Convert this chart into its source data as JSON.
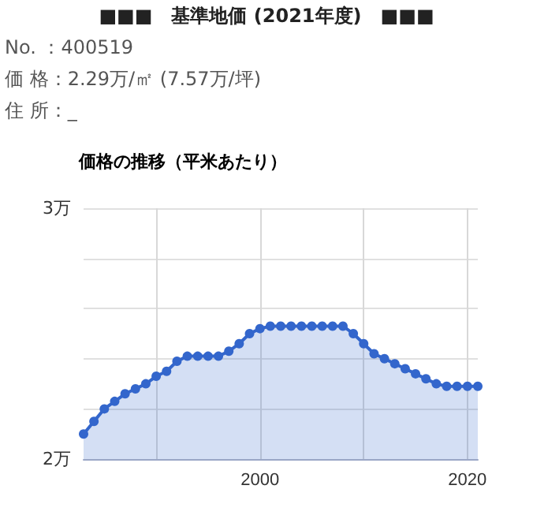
{
  "chart_data": {
    "type": "area",
    "title": "■■■　基準地価 (2021年度)　■■■",
    "annotations": [
      "No. ：400519",
      "価 格：2.29万/㎡ (7.57万/坪)",
      "住 所：_"
    ],
    "subtitle": "価格の推移（平米あたり）",
    "x": [
      1983,
      1984,
      1985,
      1986,
      1987,
      1988,
      1989,
      1990,
      1991,
      1992,
      1993,
      1994,
      1995,
      1996,
      1997,
      1998,
      1999,
      2000,
      2001,
      2002,
      2003,
      2004,
      2005,
      2006,
      2007,
      2008,
      2009,
      2010,
      2011,
      2012,
      2013,
      2014,
      2015,
      2016,
      2017,
      2018,
      2019,
      2020,
      2021
    ],
    "series": [
      {
        "color": "#3366cc",
        "values": [
          2.1,
          2.15,
          2.2,
          2.23,
          2.26,
          2.28,
          2.3,
          2.33,
          2.35,
          2.39,
          2.41,
          2.41,
          2.41,
          2.41,
          2.43,
          2.46,
          2.5,
          2.52,
          2.53,
          2.53,
          2.53,
          2.53,
          2.53,
          2.53,
          2.53,
          2.53,
          2.5,
          2.46,
          2.42,
          2.4,
          2.38,
          2.36,
          2.34,
          2.32,
          2.3,
          2.29,
          2.29,
          2.29,
          2.29
        ]
      }
    ],
    "xlim": [
      1983,
      2021
    ],
    "xticks": [
      {
        "value": 1990,
        "label": null
      },
      2000,
      {
        "value": 2010,
        "label": null
      },
      2020
    ],
    "ylim": [
      2,
      3
    ],
    "yticks": [
      {
        "value": 2,
        "label": "2万"
      },
      {
        "value": 2.2,
        "label": null
      },
      {
        "value": 2.4,
        "label": null
      },
      {
        "value": 2.6,
        "label": null
      },
      {
        "value": 2.8,
        "label": null
      },
      {
        "value": 3,
        "label": "3万"
      }
    ],
    "grid": true,
    "marker": "circle",
    "line_style": "solid"
  }
}
